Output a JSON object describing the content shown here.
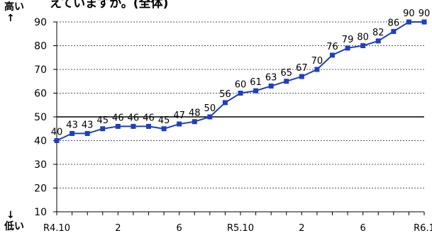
{
  "chart_data": {
    "type": "line",
    "title": "えていますか。(全体)",
    "y_top_label": "高い",
    "y_bottom_label": "低い",
    "arrow_up": "↑",
    "arrow_down": "↓",
    "ylim": [
      10,
      90
    ],
    "yticks": [
      10,
      20,
      30,
      40,
      50,
      60,
      70,
      80,
      90
    ],
    "grid": "dotted-horizontal",
    "reference_line": 50,
    "x_tick_labels": [
      {
        "index": 0,
        "label": "R4.10"
      },
      {
        "index": 4,
        "label": "2"
      },
      {
        "index": 8,
        "label": "6"
      },
      {
        "index": 12,
        "label": "R5.10"
      },
      {
        "index": 16,
        "label": "2"
      },
      {
        "index": 20,
        "label": "6"
      },
      {
        "index": 24,
        "label": "R6.1"
      }
    ],
    "line_color": "#1f3fbf",
    "series": [
      {
        "values": [
          40,
          43,
          43,
          45,
          46,
          46,
          46,
          45,
          47,
          48,
          50,
          56,
          60,
          61,
          63,
          65,
          67,
          70,
          76,
          79,
          80,
          82,
          86,
          90,
          90
        ]
      }
    ]
  }
}
